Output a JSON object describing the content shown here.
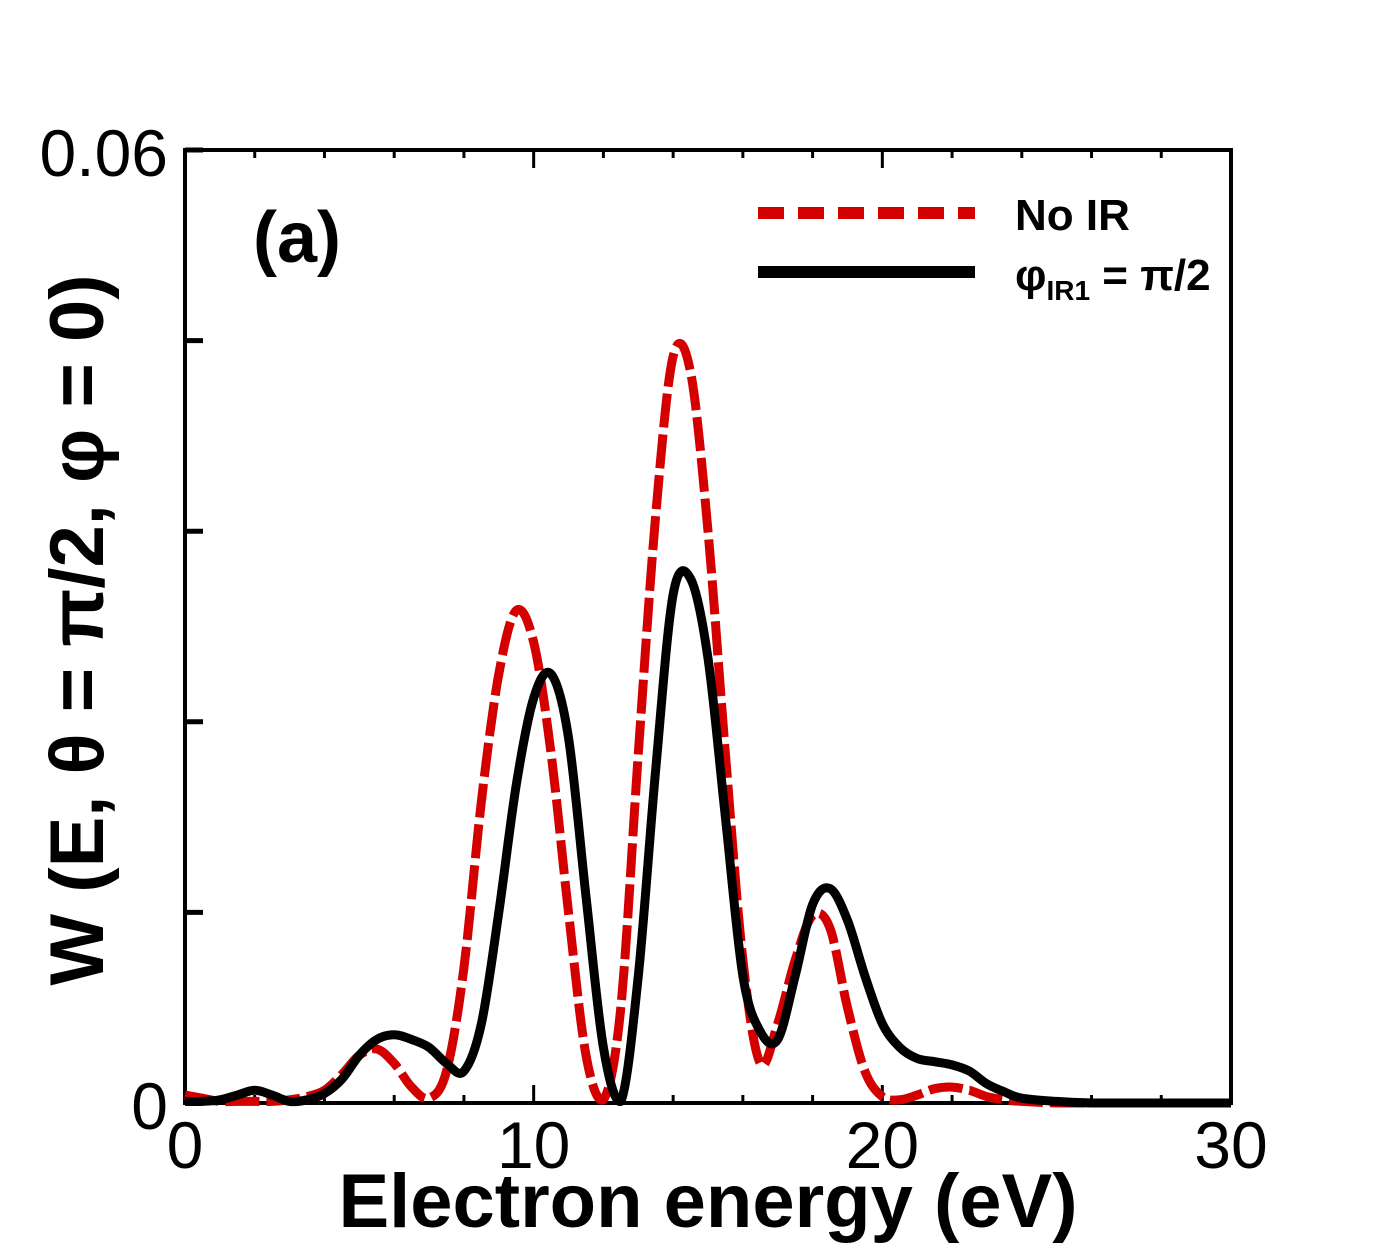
{
  "chart_data": {
    "type": "line",
    "title": "",
    "panel_label": "(a)",
    "xlabel": "Electron energy (eV)",
    "ylabel": "W (E, θ = π/2, φ = 0)",
    "xlim": [
      0,
      30
    ],
    "ylim": [
      0,
      0.06
    ],
    "x_ticks": [
      0,
      10,
      20,
      30
    ],
    "x_tick_labels": [
      "0",
      "10",
      "20",
      "30"
    ],
    "y_ticks": [
      0,
      0.06
    ],
    "y_tick_labels": [
      "0",
      "0.06"
    ],
    "legend_position": "top-right",
    "series": [
      {
        "name": "No IR",
        "style": "dashed",
        "color": "#d40000",
        "x": [
          0,
          0.5,
          1,
          1.5,
          2,
          2.5,
          3,
          3.5,
          4,
          4.5,
          5,
          5.5,
          6,
          6.5,
          7,
          7.5,
          8,
          8.5,
          9,
          9.5,
          10,
          10.5,
          11,
          11.5,
          12,
          12.5,
          13,
          13.5,
          14,
          14.5,
          15,
          15.5,
          16,
          16.5,
          17,
          17.5,
          18,
          18.5,
          19,
          19.5,
          20,
          20.5,
          21,
          21.5,
          22,
          22.5,
          23,
          23.5,
          24,
          25,
          26,
          27,
          28,
          29,
          30
        ],
        "y": [
          0.0005,
          0.0003,
          0.0001,
          0.0001,
          0.0001,
          0.0001,
          0.0002,
          0.0004,
          0.0008,
          0.0018,
          0.003,
          0.0034,
          0.0025,
          0.001,
          0.0003,
          0.002,
          0.0085,
          0.019,
          0.027,
          0.031,
          0.029,
          0.022,
          0.012,
          0.003,
          0.0002,
          0.006,
          0.022,
          0.037,
          0.047,
          0.046,
          0.036,
          0.022,
          0.009,
          0.0025,
          0.005,
          0.009,
          0.0118,
          0.011,
          0.006,
          0.002,
          0.0004,
          0.0002,
          0.0005,
          0.0009,
          0.001,
          0.0008,
          0.0004,
          0.0002,
          0.0001,
          0,
          0,
          0,
          0,
          0,
          0
        ]
      },
      {
        "name": "φIR1 = π/2",
        "style": "solid",
        "color": "#000000",
        "x": [
          0,
          0.5,
          1,
          1.5,
          2,
          2.5,
          3,
          3.5,
          4,
          4.5,
          5,
          5.5,
          6,
          6.5,
          7,
          7.5,
          8,
          8.5,
          9,
          9.5,
          10,
          10.5,
          11,
          11.5,
          12,
          12.5,
          13,
          13.5,
          14,
          14.5,
          15,
          15.5,
          16,
          16.5,
          17,
          17.5,
          18,
          18.5,
          19,
          19.5,
          20,
          20.5,
          21,
          21.5,
          22,
          22.5,
          23,
          23.5,
          24,
          25,
          26,
          27,
          28,
          29,
          30
        ],
        "y": [
          0.0001,
          0.0001,
          0.0002,
          0.0005,
          0.0008,
          0.0005,
          0.0001,
          0.0002,
          0.0006,
          0.0015,
          0.003,
          0.004,
          0.0043,
          0.004,
          0.0035,
          0.0025,
          0.002,
          0.005,
          0.012,
          0.02,
          0.0255,
          0.027,
          0.023,
          0.013,
          0.0035,
          0.0001,
          0.008,
          0.021,
          0.032,
          0.033,
          0.028,
          0.018,
          0.008,
          0.0045,
          0.004,
          0.008,
          0.0125,
          0.0135,
          0.0115,
          0.008,
          0.005,
          0.0035,
          0.0028,
          0.0026,
          0.0024,
          0.002,
          0.0012,
          0.0007,
          0.0003,
          0.0001,
          0,
          0,
          0,
          0,
          0
        ]
      }
    ],
    "legend": [
      {
        "name_main": "No IR",
        "name_greek": "",
        "name_sub": "",
        "name_rest": ""
      },
      {
        "name_main": "",
        "name_greek": "φ",
        "name_sub": "IR1",
        "name_rest": " = π/2"
      }
    ]
  }
}
